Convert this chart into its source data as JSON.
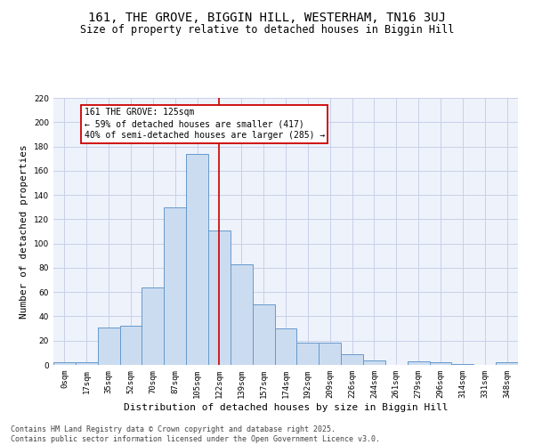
{
  "title": "161, THE GROVE, BIGGIN HILL, WESTERHAM, TN16 3UJ",
  "subtitle": "Size of property relative to detached houses in Biggin Hill",
  "xlabel": "Distribution of detached houses by size in Biggin Hill",
  "ylabel": "Number of detached properties",
  "bin_labels": [
    "0sqm",
    "17sqm",
    "35sqm",
    "52sqm",
    "70sqm",
    "87sqm",
    "105sqm",
    "122sqm",
    "139sqm",
    "157sqm",
    "174sqm",
    "192sqm",
    "209sqm",
    "226sqm",
    "244sqm",
    "261sqm",
    "279sqm",
    "296sqm",
    "314sqm",
    "331sqm",
    "348sqm"
  ],
  "bar_heights": [
    2,
    2,
    31,
    32,
    64,
    130,
    174,
    111,
    83,
    50,
    30,
    18,
    18,
    9,
    4,
    0,
    3,
    2,
    1,
    0,
    2
  ],
  "bar_color": "#ccdcf0",
  "bar_edge_color": "#6699cc",
  "background_color": "#eef2fb",
  "grid_color": "#c8d0e8",
  "annotation_text": "161 THE GROVE: 125sqm\n← 59% of detached houses are smaller (417)\n40% of semi-detached houses are larger (285) →",
  "vline_bin_index": 7,
  "vline_color": "#cc0000",
  "annotation_box_edge_color": "#cc0000",
  "ylim": [
    0,
    220
  ],
  "yticks": [
    0,
    20,
    40,
    60,
    80,
    100,
    120,
    140,
    160,
    180,
    200,
    220
  ],
  "footer_text": "Contains HM Land Registry data © Crown copyright and database right 2025.\nContains public sector information licensed under the Open Government Licence v3.0.",
  "title_fontsize": 10,
  "subtitle_fontsize": 8.5,
  "label_fontsize": 8,
  "tick_fontsize": 6.5,
  "annotation_fontsize": 7,
  "footer_fontsize": 6
}
